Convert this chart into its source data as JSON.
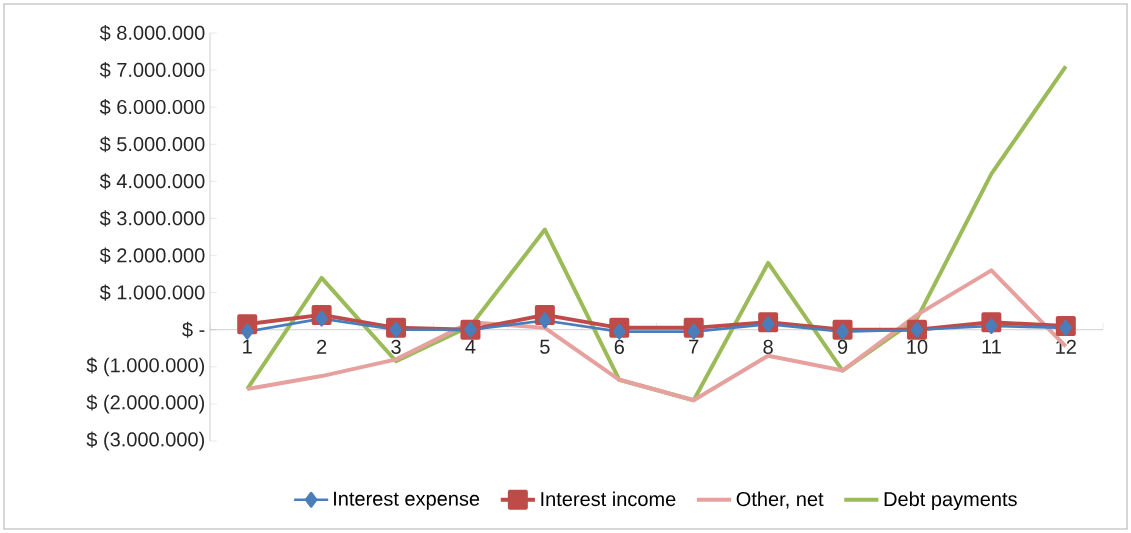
{
  "chart_data": {
    "type": "line",
    "categories": [
      "1",
      "2",
      "3",
      "4",
      "5",
      "6",
      "7",
      "8",
      "9",
      "10",
      "11",
      "12"
    ],
    "series": [
      {
        "name": "Interest expense",
        "color": "#4a7ebb",
        "marker": "diamond",
        "values": [
          -50000,
          300000,
          0,
          0,
          250000,
          -50000,
          -50000,
          150000,
          -50000,
          0,
          100000,
          50000
        ]
      },
      {
        "name": "Interest income",
        "color": "#be4b48",
        "marker": "square",
        "values": [
          150000,
          400000,
          50000,
          0,
          400000,
          50000,
          50000,
          200000,
          0,
          0,
          200000,
          100000
        ]
      },
      {
        "name": "Other, net",
        "color": "#e6a09e",
        "marker": "none",
        "values": [
          -1600000,
          -1250000,
          -800000,
          200000,
          50000,
          -1350000,
          -1900000,
          -700000,
          -1100000,
          400000,
          1600000,
          -450000
        ]
      },
      {
        "name": "Debt payments",
        "color": "#9bbb59",
        "marker": "none",
        "values": [
          -1600000,
          1400000,
          -850000,
          100000,
          2700000,
          -1350000,
          -1900000,
          1800000,
          -1100000,
          300000,
          4200000,
          7100000
        ]
      }
    ],
    "ylim": [
      -3000000,
      8000000
    ],
    "yticks": [
      {
        "value": -3000000,
        "label": "$ (3.000.000)"
      },
      {
        "value": -2000000,
        "label": "$ (2.000.000)"
      },
      {
        "value": -1000000,
        "label": "$ (1.000.000)"
      },
      {
        "value": 0,
        "label": "$ -"
      },
      {
        "value": 1000000,
        "label": "$ 1.000.000"
      },
      {
        "value": 2000000,
        "label": "$ 2.000.000"
      },
      {
        "value": 3000000,
        "label": "$ 3.000.000"
      },
      {
        "value": 4000000,
        "label": "$ 4.000.000"
      },
      {
        "value": 5000000,
        "label": "$ 5.000.000"
      },
      {
        "value": 6000000,
        "label": "$ 6.000.000"
      },
      {
        "value": 7000000,
        "label": "$ 7.000.000"
      },
      {
        "value": 8000000,
        "label": "$ 8.000.000"
      }
    ],
    "legend": "bottom"
  }
}
